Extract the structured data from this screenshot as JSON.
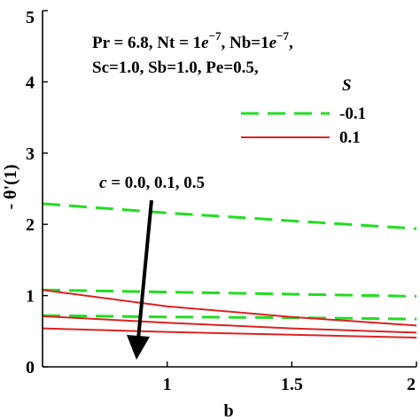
{
  "chart_data": {
    "type": "line",
    "xlabel": "b",
    "ylabel": "- θ'(1)",
    "xlim": [
      0.5,
      2
    ],
    "ylim": [
      0,
      5
    ],
    "xticks": [
      {
        "value": 1,
        "label": "1"
      },
      {
        "value": 1.5,
        "label": "1.5"
      },
      {
        "value": 2,
        "label": "2"
      }
    ],
    "yticks": [
      {
        "value": 0,
        "label": "0"
      },
      {
        "value": 1,
        "label": "1"
      },
      {
        "value": 2,
        "label": "2"
      },
      {
        "value": 3,
        "label": "3"
      },
      {
        "value": 4,
        "label": "4"
      },
      {
        "value": 5,
        "label": "5"
      }
    ],
    "params_line1": {
      "a": "Pr = 6.8, Nt = 1",
      "b": "e",
      "c": "−7",
      "d": ", Nb=1",
      "e": "e",
      "f": "−7",
      "g": ","
    },
    "params_line2": "Sc=1.0, Sb=1.0, Pe=0.5,",
    "legend": {
      "title": "S",
      "placement": "top-right",
      "entries": [
        {
          "label": "-0.1",
          "color": "#22dd22",
          "dash": true
        },
        {
          "label": "0.1",
          "color": "#dd2222",
          "dash": false
        }
      ]
    },
    "arrow_annotation": {
      "var": "c",
      "text": " = 0.0, 0.1, 0.5"
    },
    "series": [
      {
        "S": "-0.1",
        "c": "0.0",
        "color": "#22dd22",
        "dash": true,
        "x": [
          0.5,
          1.0,
          1.5,
          2.0
        ],
        "y": [
          2.29,
          2.16,
          2.05,
          1.94
        ]
      },
      {
        "S": "-0.1",
        "c": "0.1",
        "color": "#22dd22",
        "dash": true,
        "x": [
          0.5,
          1.0,
          1.5,
          2.0
        ],
        "y": [
          1.08,
          1.05,
          1.02,
          0.99
        ]
      },
      {
        "S": "-0.1",
        "c": "0.5",
        "color": "#22dd22",
        "dash": true,
        "x": [
          0.5,
          1.0,
          1.5,
          2.0
        ],
        "y": [
          0.72,
          0.7,
          0.69,
          0.67
        ]
      },
      {
        "S": "0.1",
        "c": "0.0",
        "color": "#dd2222",
        "dash": false,
        "x": [
          0.5,
          1.0,
          1.5,
          2.0
        ],
        "y": [
          1.08,
          0.85,
          0.7,
          0.58
        ]
      },
      {
        "S": "0.1",
        "c": "0.1",
        "color": "#dd2222",
        "dash": false,
        "x": [
          0.5,
          1.0,
          1.5,
          2.0
        ],
        "y": [
          0.71,
          0.62,
          0.54,
          0.48
        ]
      },
      {
        "S": "0.1",
        "c": "0.5",
        "color": "#dd2222",
        "dash": false,
        "x": [
          0.5,
          1.0,
          1.5,
          2.0
        ],
        "y": [
          0.54,
          0.49,
          0.45,
          0.41
        ]
      }
    ]
  }
}
